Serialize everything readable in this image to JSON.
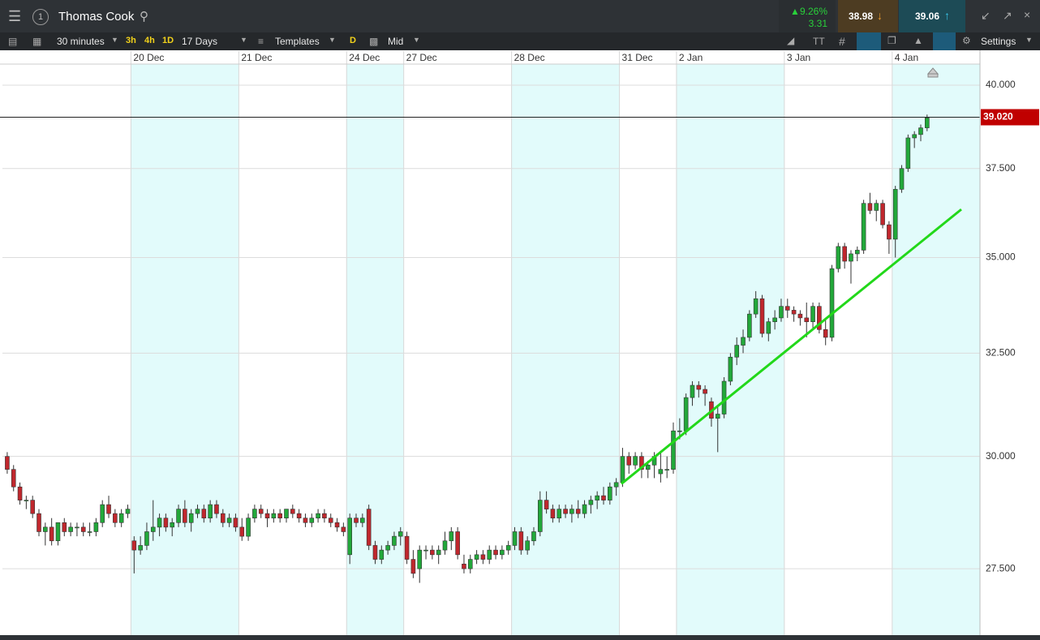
{
  "header": {
    "title": "Thomas Cook",
    "change_pct": "9.26%",
    "change": "3.31",
    "sell": "38.98",
    "buy": "39.06"
  },
  "toolbar": {
    "interval": "30 minutes",
    "quick": [
      "3h",
      "4h",
      "1D"
    ],
    "range": "17 Days",
    "templates": "Templates",
    "d": "D",
    "price_type": "Mid",
    "settings": "Settings"
  },
  "chart_data": {
    "type": "candlestick",
    "log": true,
    "ylim": [
      26.12,
      41.02
    ],
    "yticks": [
      {
        "value": 27.5,
        "label": "27.500"
      },
      {
        "value": 30,
        "label": "30.000"
      },
      {
        "value": 32.5,
        "label": "32.500"
      },
      {
        "value": 35,
        "label": "35.000"
      },
      {
        "value": 37.5,
        "label": "37.500"
      },
      {
        "value": 40,
        "label": "40.000"
      }
    ],
    "current_price": {
      "value": 39.02,
      "label": "39.020"
    },
    "trendline": [
      29.37,
      36.33
    ],
    "colors": {
      "up": "#22a83a",
      "down": "#c0272d",
      "band": "#e2fbfb",
      "trendline": "#22d81a"
    },
    "days": [
      {
        "label": null,
        "candles": [
          [
            30.0,
            30.1,
            29.6,
            29.7
          ],
          [
            29.7,
            29.8,
            29.2,
            29.3
          ],
          [
            29.3,
            29.4,
            28.9,
            29.0
          ],
          [
            29.0,
            29.1,
            28.8,
            29.0
          ],
          [
            29.0,
            29.1,
            28.6,
            28.7
          ],
          [
            28.7,
            28.8,
            28.2,
            28.3
          ],
          [
            28.3,
            28.5,
            28.0,
            28.4
          ],
          [
            28.4,
            28.6,
            28.0,
            28.1
          ],
          [
            28.1,
            28.5,
            28.0,
            28.5
          ],
          [
            28.5,
            28.6,
            28.2,
            28.3
          ],
          [
            28.3,
            28.5,
            28.2,
            28.4
          ],
          [
            28.4,
            28.5,
            28.2,
            28.4
          ],
          [
            28.4,
            28.5,
            28.2,
            28.3
          ],
          [
            28.3,
            28.5,
            28.2,
            28.3
          ],
          [
            28.3,
            28.6,
            28.2,
            28.5
          ],
          [
            28.5,
            29.0,
            28.4,
            28.9
          ],
          [
            28.9,
            29.1,
            28.6,
            28.7
          ],
          [
            28.7,
            28.8,
            28.4,
            28.5
          ],
          [
            28.5,
            28.8,
            28.4,
            28.7
          ],
          [
            28.7,
            28.9,
            28.6,
            28.8
          ]
        ]
      },
      {
        "label": "20 Dec",
        "candles": [
          [
            28.1,
            28.2,
            27.4,
            27.9
          ],
          [
            27.9,
            28.2,
            27.8,
            28.0
          ],
          [
            28.0,
            28.5,
            27.9,
            28.3
          ],
          [
            28.3,
            29.0,
            28.1,
            28.4
          ],
          [
            28.4,
            28.7,
            28.2,
            28.6
          ],
          [
            28.6,
            28.7,
            28.3,
            28.4
          ],
          [
            28.4,
            28.6,
            28.2,
            28.5
          ],
          [
            28.5,
            28.9,
            28.4,
            28.8
          ],
          [
            28.8,
            29.0,
            28.4,
            28.5
          ],
          [
            28.5,
            28.8,
            28.3,
            28.7
          ],
          [
            28.7,
            28.9,
            28.6,
            28.8
          ],
          [
            28.8,
            28.9,
            28.5,
            28.6
          ],
          [
            28.6,
            29.0,
            28.5,
            28.9
          ],
          [
            28.9,
            29.0,
            28.6,
            28.7
          ],
          [
            28.7,
            28.8,
            28.4,
            28.5
          ],
          [
            28.5,
            28.7,
            28.4,
            28.6
          ],
          [
            28.6,
            28.7,
            28.3,
            28.4
          ]
        ]
      },
      {
        "label": "21 Dec",
        "candles": [
          [
            28.4,
            28.6,
            28.1,
            28.2
          ],
          [
            28.2,
            28.7,
            28.1,
            28.6
          ],
          [
            28.6,
            28.9,
            28.5,
            28.8
          ],
          [
            28.8,
            28.9,
            28.6,
            28.7
          ],
          [
            28.7,
            28.8,
            28.4,
            28.6
          ],
          [
            28.6,
            28.8,
            28.5,
            28.7
          ],
          [
            28.7,
            28.8,
            28.5,
            28.6
          ],
          [
            28.6,
            28.8,
            28.5,
            28.8
          ],
          [
            28.8,
            28.9,
            28.6,
            28.7
          ],
          [
            28.7,
            28.8,
            28.5,
            28.6
          ],
          [
            28.6,
            28.7,
            28.4,
            28.5
          ],
          [
            28.5,
            28.7,
            28.4,
            28.6
          ],
          [
            28.6,
            28.8,
            28.5,
            28.7
          ],
          [
            28.7,
            28.8,
            28.5,
            28.6
          ],
          [
            28.6,
            28.7,
            28.4,
            28.5
          ],
          [
            28.5,
            28.6,
            28.3,
            28.4
          ],
          [
            28.4,
            28.5,
            28.2,
            28.3
          ]
        ]
      },
      {
        "label": "24 Dec",
        "candles": [
          [
            27.8,
            28.7,
            27.6,
            28.6
          ],
          [
            28.6,
            28.7,
            28.4,
            28.5
          ],
          [
            28.5,
            28.7,
            28.4,
            28.6
          ],
          [
            28.8,
            28.9,
            27.9,
            28.0
          ],
          [
            28.0,
            28.1,
            27.6,
            27.7
          ],
          [
            27.7,
            28.0,
            27.6,
            27.9
          ],
          [
            27.9,
            28.1,
            27.8,
            28.0
          ],
          [
            28.0,
            28.3,
            27.9,
            28.2
          ],
          [
            28.2,
            28.4,
            28.0,
            28.3
          ]
        ]
      },
      {
        "label": "27 Dec",
        "candles": [
          [
            28.2,
            28.3,
            27.6,
            27.7
          ],
          [
            27.7,
            27.9,
            27.3,
            27.4
          ],
          [
            27.5,
            28.0,
            27.2,
            27.9
          ],
          [
            27.9,
            28.0,
            27.7,
            27.9
          ],
          [
            27.9,
            28.0,
            27.7,
            27.8
          ],
          [
            27.8,
            28.0,
            27.6,
            27.9
          ],
          [
            27.9,
            28.3,
            27.8,
            28.1
          ],
          [
            28.1,
            28.4,
            27.9,
            28.3
          ],
          [
            28.3,
            28.4,
            27.7,
            27.8
          ],
          [
            27.6,
            27.8,
            27.4,
            27.5
          ],
          [
            27.5,
            27.8,
            27.4,
            27.7
          ],
          [
            27.7,
            27.9,
            27.6,
            27.8
          ],
          [
            27.8,
            27.9,
            27.6,
            27.7
          ],
          [
            27.7,
            28.0,
            27.6,
            27.9
          ],
          [
            27.9,
            28.0,
            27.7,
            27.8
          ],
          [
            27.8,
            28.0,
            27.7,
            27.9
          ],
          [
            27.9,
            28.1,
            27.8,
            28.0
          ]
        ]
      },
      {
        "label": "28 Dec",
        "candles": [
          [
            28.0,
            28.4,
            27.9,
            28.3
          ],
          [
            28.3,
            28.4,
            27.8,
            27.9
          ],
          [
            27.9,
            28.2,
            27.8,
            28.1
          ],
          [
            28.1,
            28.4,
            28.0,
            28.3
          ],
          [
            28.3,
            29.2,
            28.2,
            29.0
          ],
          [
            29.0,
            29.2,
            28.7,
            28.8
          ],
          [
            28.8,
            28.9,
            28.5,
            28.6
          ],
          [
            28.6,
            28.9,
            28.5,
            28.8
          ],
          [
            28.8,
            28.9,
            28.6,
            28.7
          ],
          [
            28.7,
            28.9,
            28.5,
            28.8
          ],
          [
            28.8,
            29.0,
            28.6,
            28.7
          ],
          [
            28.7,
            29.0,
            28.6,
            28.9
          ],
          [
            28.9,
            29.1,
            28.7,
            29.0
          ],
          [
            29.0,
            29.2,
            28.8,
            29.1
          ],
          [
            29.1,
            29.3,
            28.9,
            29.0
          ],
          [
            29.0,
            29.4,
            28.9,
            29.3
          ],
          [
            29.3,
            29.5,
            29.1,
            29.4
          ]
        ]
      },
      {
        "label": "31 Dec",
        "candles": [
          [
            29.4,
            30.2,
            29.3,
            30.0
          ],
          [
            30.0,
            30.1,
            29.6,
            29.8
          ],
          [
            29.8,
            30.1,
            29.7,
            30.0
          ],
          [
            30.0,
            30.1,
            29.5,
            29.7
          ],
          [
            29.7,
            29.9,
            29.5,
            29.8
          ],
          [
            29.8,
            30.1,
            29.5,
            30.0
          ],
          [
            29.6,
            30.1,
            29.4,
            29.7
          ],
          [
            29.7,
            30.0,
            29.5,
            29.7
          ],
          [
            29.7,
            30.8,
            29.6,
            30.6
          ]
        ]
      },
      {
        "label": "2 Jan",
        "candles": [
          [
            30.6,
            30.9,
            30.4,
            30.6
          ],
          [
            30.6,
            31.5,
            30.5,
            31.4
          ],
          [
            31.4,
            31.8,
            31.2,
            31.7
          ],
          [
            31.7,
            31.8,
            31.4,
            31.6
          ],
          [
            31.6,
            31.7,
            31.2,
            31.5
          ],
          [
            31.3,
            31.4,
            30.7,
            30.9
          ],
          [
            30.9,
            31.2,
            30.1,
            31.0
          ],
          [
            31.0,
            31.9,
            30.9,
            31.8
          ],
          [
            31.8,
            32.5,
            31.7,
            32.4
          ],
          [
            32.4,
            32.9,
            32.2,
            32.7
          ],
          [
            32.7,
            33.1,
            32.5,
            32.9
          ],
          [
            32.9,
            33.6,
            32.8,
            33.5
          ],
          [
            33.5,
            34.1,
            33.4,
            33.9
          ],
          [
            33.9,
            34.0,
            32.9,
            33.0
          ],
          [
            33.0,
            33.4,
            32.8,
            33.3
          ],
          [
            33.3,
            33.6,
            33.1,
            33.4
          ],
          [
            33.4,
            33.9,
            33.3,
            33.7
          ]
        ]
      },
      {
        "label": "3 Jan",
        "candles": [
          [
            33.7,
            33.9,
            33.4,
            33.6
          ],
          [
            33.6,
            33.7,
            33.3,
            33.5
          ],
          [
            33.5,
            33.6,
            33.2,
            33.4
          ],
          [
            33.4,
            33.8,
            32.9,
            33.3
          ],
          [
            33.3,
            33.8,
            33.1,
            33.7
          ],
          [
            33.7,
            33.8,
            33.0,
            33.1
          ],
          [
            33.1,
            33.4,
            32.7,
            32.9
          ],
          [
            32.9,
            34.8,
            32.8,
            34.7
          ],
          [
            34.7,
            35.4,
            34.6,
            35.3
          ],
          [
            35.3,
            35.4,
            34.7,
            34.9
          ],
          [
            34.9,
            35.2,
            34.3,
            35.1
          ],
          [
            35.1,
            35.3,
            34.9,
            35.2
          ],
          [
            35.2,
            36.6,
            35.1,
            36.5
          ],
          [
            36.5,
            36.8,
            36.2,
            36.3
          ],
          [
            36.3,
            36.6,
            36.0,
            36.5
          ],
          [
            36.5,
            36.6,
            35.8,
            35.9
          ],
          [
            35.9,
            36.0,
            35.1,
            35.5
          ]
        ]
      },
      {
        "label": "4 Jan",
        "candles": [
          [
            35.5,
            37.0,
            35.0,
            36.9
          ],
          [
            36.9,
            37.6,
            36.8,
            37.5
          ],
          [
            37.5,
            38.5,
            37.4,
            38.4
          ],
          [
            38.4,
            38.6,
            38.1,
            38.5
          ],
          [
            38.5,
            38.8,
            38.3,
            38.7
          ],
          [
            38.7,
            39.1,
            38.6,
            39.0
          ]
        ]
      }
    ]
  }
}
